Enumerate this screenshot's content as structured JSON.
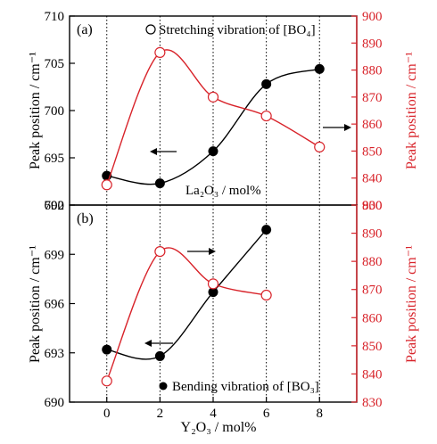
{
  "chart_data": [
    {
      "type": "line",
      "panel_label": "(a)",
      "legend": "Stretching vibration of [BO₄]",
      "xlabel": "",
      "x": [
        0,
        2,
        4,
        6,
        8
      ],
      "xlim": [
        -1.4,
        9.4
      ],
      "left_axis": {
        "label": "Peak position / cm⁻¹",
        "ylim": [
          690,
          710
        ],
        "ticks": [
          "690",
          "695",
          "700",
          "705",
          "710"
        ]
      },
      "right_axis": {
        "label": "Peak position / cm⁻¹",
        "ylim": [
          830,
          900
        ],
        "ticks": [
          "830",
          "840",
          "850",
          "860",
          "870",
          "880",
          "890",
          "900"
        ]
      },
      "series": [
        {
          "axis": "left",
          "color": "#000000",
          "marker": "filled-circle",
          "values": [
            693.1,
            692.3,
            695.7,
            702.8,
            704.4
          ]
        },
        {
          "axis": "right",
          "color": "#d8232a",
          "marker": "open-circle",
          "values": [
            837.5,
            886.5,
            870.0,
            863.0,
            851.5
          ]
        }
      ],
      "annotation": "La₂O₃ / mol%"
    },
    {
      "type": "line",
      "panel_label": "(b)",
      "legend": "Bending vibration of [BO₃]",
      "xlabel": "Y₂O₃ / mol%",
      "x": [
        0,
        2,
        4,
        6,
        8
      ],
      "xlim": [
        -1.4,
        9.4
      ],
      "xticks": [
        "0",
        "2",
        "4",
        "6",
        "8"
      ],
      "left_axis": {
        "label": "Peak position / cm⁻¹",
        "ylim": [
          690,
          702
        ],
        "ticks": [
          "690",
          "693",
          "696",
          "699",
          "702"
        ]
      },
      "right_axis": {
        "label": "Peak position / cm⁻¹",
        "ylim": [
          830,
          900
        ],
        "ticks": [
          "830",
          "840",
          "850",
          "860",
          "870",
          "880",
          "890",
          "900"
        ]
      },
      "series": [
        {
          "axis": "left",
          "color": "#000000",
          "marker": "filled-circle",
          "values": [
            693.2,
            692.8,
            696.7,
            700.5,
            null
          ]
        },
        {
          "axis": "right",
          "color": "#d8232a",
          "marker": "open-circle",
          "values": [
            837.5,
            883.5,
            872.0,
            868.0,
            null
          ]
        }
      ]
    }
  ]
}
